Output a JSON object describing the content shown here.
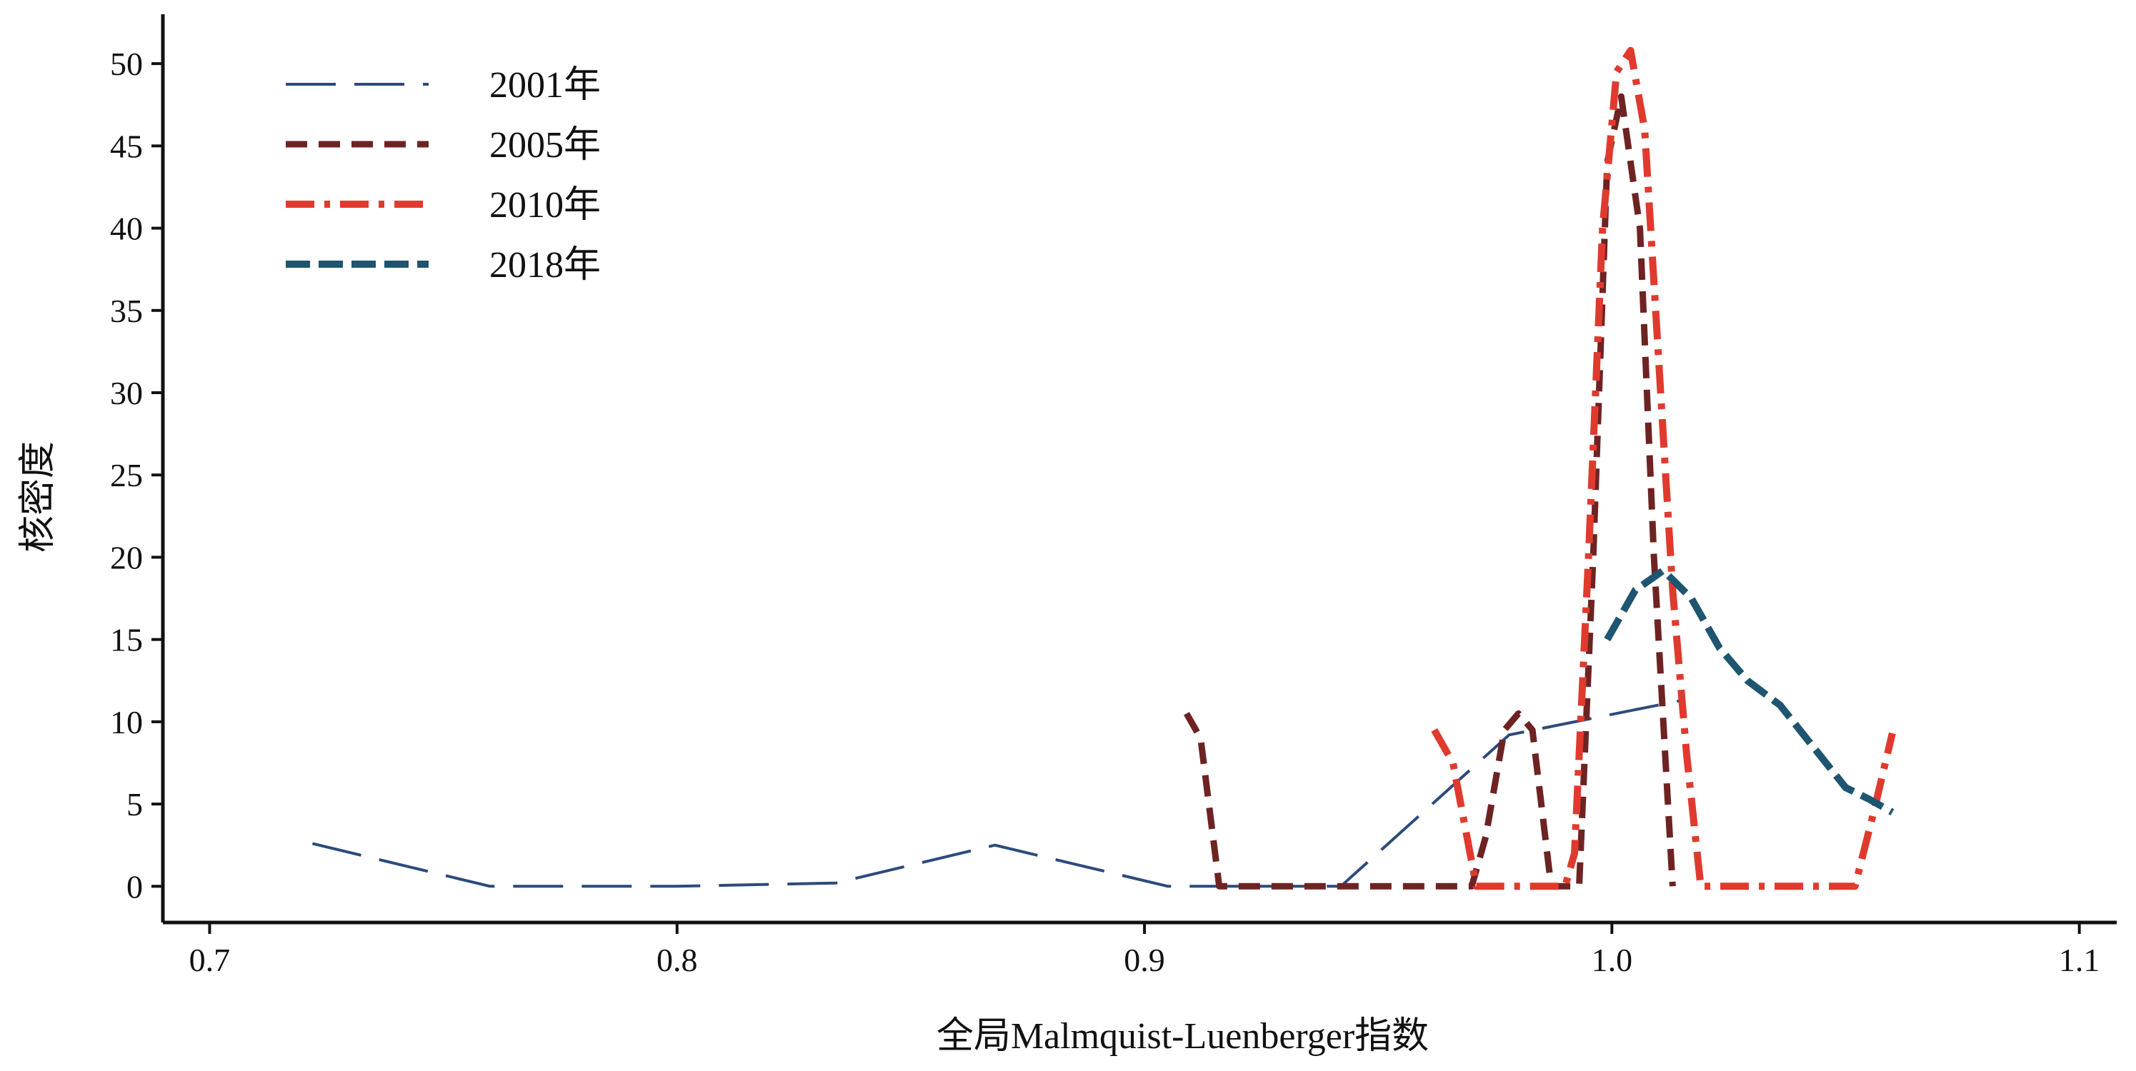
{
  "chart_data": {
    "type": "line",
    "title": "",
    "xlabel": "全局Malmquist-Luenberger指数",
    "ylabel": "核密度",
    "xlim": [
      0.69,
      1.108
    ],
    "ylim": [
      -2.2,
      53
    ],
    "x_ticks": [
      0.7,
      0.8,
      0.9,
      1.0,
      1.1
    ],
    "x_tick_labels": [
      "0.7",
      "0.8",
      "0.9",
      "1.0",
      "1.1"
    ],
    "y_ticks": [
      0,
      5,
      10,
      15,
      20,
      25,
      30,
      35,
      40,
      45,
      50
    ],
    "y_tick_labels": [
      "0",
      "5",
      "10",
      "15",
      "20",
      "25",
      "30",
      "35",
      "40",
      "45",
      "50"
    ],
    "grid": false,
    "legend_position": "top-left",
    "series": [
      {
        "name": "2001年",
        "color": "#2c4a7c",
        "dash": "long",
        "points": [
          [
            0.722,
            2.6
          ],
          [
            0.76,
            0.0
          ],
          [
            0.8,
            0.0
          ],
          [
            0.834,
            0.2
          ],
          [
            0.868,
            2.5
          ],
          [
            0.905,
            0.0
          ],
          [
            0.942,
            0.0
          ],
          [
            0.978,
            9.2
          ],
          [
            1.015,
            11.3
          ]
        ]
      },
      {
        "name": "2005年",
        "color": "#6e2323",
        "dash": "medium",
        "points": [
          [
            0.909,
            10.5
          ],
          [
            0.912,
            9.0
          ],
          [
            0.916,
            0.0
          ],
          [
            0.95,
            0.0
          ],
          [
            0.97,
            0.0
          ],
          [
            0.973,
            3.0
          ],
          [
            0.977,
            9.5
          ],
          [
            0.98,
            10.5
          ],
          [
            0.983,
            9.5
          ],
          [
            0.987,
            0.0
          ],
          [
            0.993,
            0.0
          ],
          [
            0.996,
            20.0
          ],
          [
            0.999,
            44.0
          ],
          [
            1.002,
            48.0
          ],
          [
            1.006,
            40.0
          ],
          [
            1.009,
            20.0
          ],
          [
            1.013,
            0.0
          ]
        ]
      },
      {
        "name": "2010年",
        "color": "#e03a2e",
        "dash": "dashdot",
        "points": [
          [
            0.962,
            9.5
          ],
          [
            0.966,
            7.5
          ],
          [
            0.969,
            3.0
          ],
          [
            0.971,
            0.0
          ],
          [
            0.99,
            0.0
          ],
          [
            0.992,
            2.0
          ],
          [
            0.995,
            20.0
          ],
          [
            0.998,
            40.0
          ],
          [
            1.001,
            49.5
          ],
          [
            1.004,
            50.8
          ],
          [
            1.007,
            46.0
          ],
          [
            1.01,
            32.0
          ],
          [
            1.013,
            18.0
          ],
          [
            1.016,
            8.0
          ],
          [
            1.019,
            0.0
          ],
          [
            1.052,
            0.0
          ],
          [
            1.056,
            4.5
          ],
          [
            1.06,
            9.3
          ]
        ]
      },
      {
        "name": "2018年",
        "color": "#1e5570",
        "dash": "heavy",
        "points": [
          [
            0.999,
            15.0
          ],
          [
            1.005,
            18.0
          ],
          [
            1.011,
            19.2
          ],
          [
            1.017,
            17.5
          ],
          [
            1.023,
            14.5
          ],
          [
            1.029,
            12.5
          ],
          [
            1.036,
            11.0
          ],
          [
            1.043,
            8.5
          ],
          [
            1.05,
            6.0
          ],
          [
            1.055,
            5.3
          ],
          [
            1.06,
            4.5
          ]
        ]
      }
    ]
  }
}
